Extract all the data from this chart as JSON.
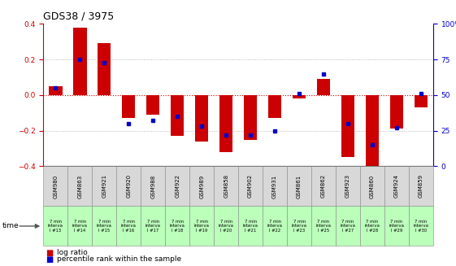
{
  "title": "GDS38 / 3975",
  "samples": [
    "GSM980",
    "GSM863",
    "GSM921",
    "GSM920",
    "GSM988",
    "GSM922",
    "GSM989",
    "GSM858",
    "GSM902",
    "GSM931",
    "GSM861",
    "GSM862",
    "GSM923",
    "GSM860",
    "GSM924",
    "GSM859"
  ],
  "time_labels": [
    "7 min\ninterva\nl #13",
    "7 min\ninterva\nl #14",
    "7 min\ninterva\nl #15",
    "7 min\ninterva\nl #16",
    "7 min\ninterva\nl #17",
    "7 min\ninterva\nl #18",
    "7 min\ninterva\nl #19",
    "7 min\ninterva\nl #20",
    "7 min\ninterva\nl #21",
    "7 min\ninterva\nl #22",
    "7 min\ninterva\nl #23",
    "7 min\ninterva\nl #25",
    "7 min\ninterva\nl #27",
    "7 min\ninterva\nl #28",
    "7 min\ninterva\nl #29",
    "7 min\ninterva\nl #30"
  ],
  "log_ratio": [
    0.05,
    0.38,
    0.29,
    -0.13,
    -0.11,
    -0.23,
    -0.26,
    -0.32,
    -0.25,
    -0.13,
    -0.02,
    0.09,
    -0.35,
    -0.43,
    -0.19,
    -0.07
  ],
  "percentile": [
    55,
    75,
    73,
    30,
    32,
    35,
    28,
    22,
    22,
    25,
    51,
    65,
    30,
    15,
    27,
    51
  ],
  "ylim_left": [
    -0.4,
    0.4
  ],
  "ylim_right": [
    0,
    100
  ],
  "bar_color": "#cc0000",
  "dot_color": "#0000cc",
  "green_bg": "#bbffbb",
  "gray_bg": "#d8d8d8",
  "title_color": "#000000",
  "right_axis_color": "#0000cc",
  "left_axis_color": "#cc0000",
  "grid_color": "#aaaaaa",
  "zero_line_color": "#cc0000"
}
